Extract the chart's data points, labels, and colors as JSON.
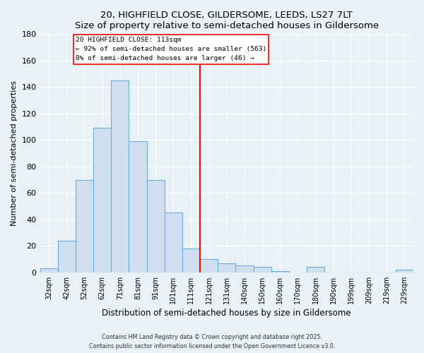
{
  "title": "20, HIGHFIELD CLOSE, GILDERSOME, LEEDS, LS27 7LT",
  "subtitle": "Size of property relative to semi-detached houses in Gildersome",
  "xlabel": "Distribution of semi-detached houses by size in Gildersome",
  "ylabel": "Number of semi-detached properties",
  "bar_labels": [
    "32sqm",
    "42sqm",
    "52sqm",
    "62sqm",
    "71sqm",
    "81sqm",
    "91sqm",
    "101sqm",
    "111sqm",
    "121sqm",
    "131sqm",
    "140sqm",
    "150sqm",
    "160sqm",
    "170sqm",
    "180sqm",
    "190sqm",
    "199sqm",
    "209sqm",
    "219sqm",
    "229sqm"
  ],
  "bar_values": [
    3,
    24,
    70,
    109,
    145,
    99,
    70,
    45,
    18,
    10,
    7,
    5,
    4,
    1,
    0,
    4,
    0,
    0,
    0,
    0,
    2
  ],
  "bar_color": "#cfdff0",
  "bar_edge_color": "#6baed6",
  "vline_color": "red",
  "vline_label_title": "20 HIGHFIELD CLOSE: 113sqm",
  "vline_label_line1": "← 92% of semi-detached houses are smaller (563)",
  "vline_label_line2": "8% of semi-detached houses are larger (46) →",
  "ylim": [
    0,
    180
  ],
  "yticks": [
    0,
    20,
    40,
    60,
    80,
    100,
    120,
    140,
    160,
    180
  ],
  "background_color": "#e8f0f8",
  "grid_color": "#ffffff",
  "footer1": "Contains HM Land Registry data © Crown copyright and database right 2025.",
  "footer2": "Contains public sector information licensed under the Open Government Licence v3.0."
}
